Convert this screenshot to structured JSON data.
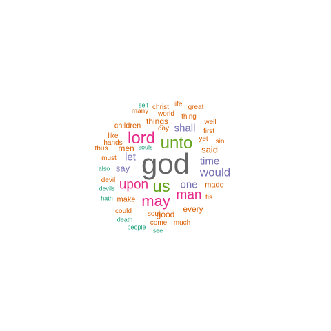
{
  "colors": {
    "background": "#ffffff",
    "gray": "#666666",
    "green": "#66a61e",
    "pink": "#e7298a",
    "purple": "#7570b3",
    "orange": "#d95f02",
    "teal": "#1b9e77",
    "gold": "#a6761d"
  },
  "words": [
    {
      "text": "god",
      "color": "gray"
    },
    {
      "text": "unto",
      "color": "green"
    },
    {
      "text": "lord",
      "color": "pink"
    },
    {
      "text": "us",
      "color": "green"
    },
    {
      "text": "may",
      "color": "pink"
    },
    {
      "text": "upon",
      "color": "pink"
    },
    {
      "text": "man",
      "color": "pink"
    },
    {
      "text": "would",
      "color": "purple"
    },
    {
      "text": "shall",
      "color": "purple"
    },
    {
      "text": "one",
      "color": "purple"
    },
    {
      "text": "time",
      "color": "purple"
    },
    {
      "text": "let",
      "color": "purple"
    },
    {
      "text": "say",
      "color": "purple"
    },
    {
      "text": "said",
      "color": "orange"
    },
    {
      "text": "every",
      "color": "orange"
    },
    {
      "text": "things",
      "color": "orange"
    },
    {
      "text": "men",
      "color": "orange"
    },
    {
      "text": "good",
      "color": "orange"
    },
    {
      "text": "made",
      "color": "orange"
    },
    {
      "text": "make",
      "color": "orange"
    },
    {
      "text": "children",
      "color": "orange"
    },
    {
      "text": "self",
      "color": "teal"
    },
    {
      "text": "christ",
      "color": "orange"
    },
    {
      "text": "life",
      "color": "orange"
    },
    {
      "text": "great",
      "color": "orange"
    },
    {
      "text": "many",
      "color": "orange"
    },
    {
      "text": "world",
      "color": "orange"
    },
    {
      "text": "thing",
      "color": "orange"
    },
    {
      "text": "well",
      "color": "orange"
    },
    {
      "text": "day",
      "color": "orange"
    },
    {
      "text": "first",
      "color": "orange"
    },
    {
      "text": "like",
      "color": "orange"
    },
    {
      "text": "hands",
      "color": "orange"
    },
    {
      "text": "souls",
      "color": "teal"
    },
    {
      "text": "yet",
      "color": "orange"
    },
    {
      "text": "sin",
      "color": "orange"
    },
    {
      "text": "thus",
      "color": "orange"
    },
    {
      "text": "must",
      "color": "orange"
    },
    {
      "text": "also",
      "color": "teal"
    },
    {
      "text": "devil",
      "color": "orange"
    },
    {
      "text": "devils",
      "color": "teal"
    },
    {
      "text": "hath",
      "color": "teal"
    },
    {
      "text": "tis",
      "color": "orange"
    },
    {
      "text": "could",
      "color": "orange"
    },
    {
      "text": "soul",
      "color": "orange"
    },
    {
      "text": "death",
      "color": "teal"
    },
    {
      "text": "come",
      "color": "orange"
    },
    {
      "text": "much",
      "color": "orange"
    },
    {
      "text": "people",
      "color": "teal"
    },
    {
      "text": "see",
      "color": "teal"
    }
  ]
}
